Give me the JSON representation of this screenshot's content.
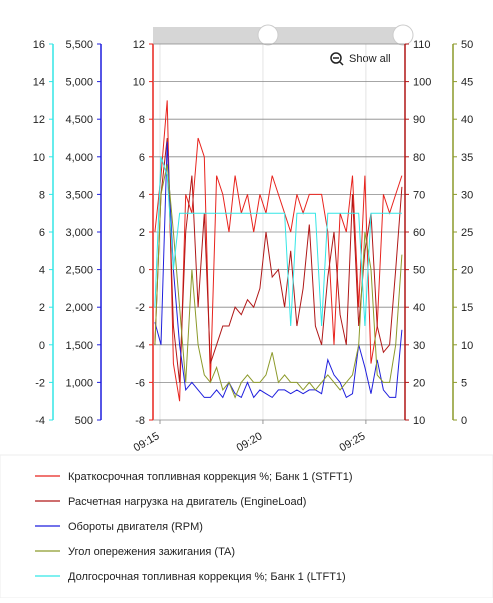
{
  "chart_data": {
    "type": "line",
    "button": "Show all",
    "x": [
      554.75,
      555.05,
      555.35,
      555.65,
      555.95,
      556.25,
      556.55,
      556.85,
      557.15,
      557.45,
      557.75,
      558.05,
      558.35,
      558.65,
      558.95,
      559.25,
      559.55,
      559.85,
      560.15,
      560.45,
      560.75,
      561.05,
      561.35,
      561.65,
      561.95,
      562.25,
      562.55,
      562.85,
      563.15,
      563.45,
      563.75,
      564.05,
      564.35,
      564.65,
      564.95,
      565.25,
      565.55,
      565.85,
      566.15,
      566.45,
      566.75
    ],
    "xlim": [
      554.66,
      566.9
    ],
    "xticks": [
      {
        "value": 555,
        "label": "09:15"
      },
      {
        "value": 560,
        "label": "09:20"
      },
      {
        "value": 565,
        "label": "09:25"
      }
    ],
    "grid": true,
    "series": [
      {
        "name": "Краткосрочная топливная коррекция %; Банк 1 (STFT1)",
        "color": "#e8231d",
        "ylim": [
          -8,
          12
        ],
        "yticks": [
          -8,
          -6,
          -4,
          -2,
          0,
          2,
          4,
          6,
          8,
          10,
          12
        ],
        "values": [
          2,
          5,
          9,
          -5,
          -7,
          4,
          3,
          7,
          6,
          -6,
          5,
          4,
          2,
          5,
          3,
          4,
          2,
          4,
          3,
          5,
          4,
          3,
          2,
          4,
          3,
          4,
          4,
          4,
          2,
          -4,
          3,
          2,
          5,
          -2,
          5,
          -5,
          -3,
          4,
          3,
          4,
          5
        ]
      },
      {
        "name": "Расчетная нагрузка на двигатель (EngineLoad)",
        "color": "#b01717",
        "ylim": [
          10,
          110
        ],
        "yticks": [
          10,
          20,
          30,
          40,
          50,
          60,
          70,
          80,
          90,
          100,
          110
        ],
        "values": [
          30,
          70,
          85,
          35,
          20,
          60,
          75,
          40,
          65,
          25,
          30,
          35,
          35,
          40,
          38,
          42,
          40,
          45,
          60,
          48,
          50,
          40,
          55,
          35,
          45,
          62,
          35,
          30,
          48,
          60,
          38,
          30,
          70,
          35,
          55,
          65,
          35,
          28,
          30,
          50,
          72
        ]
      },
      {
        "name": "Обороты двигателя (RPM)",
        "color": "#1f1fdd",
        "ylim": [
          500,
          5500
        ],
        "yticks": [
          500,
          {
            "value": 1000,
            "label": "1,000"
          },
          {
            "value": 1500,
            "label": "1,500"
          },
          {
            "value": 2000,
            "label": "2,000"
          },
          {
            "value": 2500,
            "label": "2,500"
          },
          {
            "value": 3000,
            "label": "3,000"
          },
          {
            "value": 3500,
            "label": "3,500"
          },
          {
            "value": 4000,
            "label": "4,000"
          },
          {
            "value": 4500,
            "label": "4,500"
          },
          {
            "value": 5000,
            "label": "5,000"
          },
          {
            "value": 5500,
            "label": "5,500"
          }
        ],
        "values": [
          1800,
          1500,
          4200,
          2500,
          1500,
          900,
          1000,
          900,
          800,
          800,
          900,
          800,
          1000,
          850,
          800,
          1000,
          800,
          900,
          850,
          800,
          900,
          900,
          850,
          900,
          850,
          900,
          900,
          850,
          1300,
          1100,
          1000,
          800,
          850,
          1500,
          1200,
          850,
          1300,
          900,
          800,
          800,
          1700
        ]
      },
      {
        "name": "Угол опережения зажигания (TA)",
        "color": "#8c9a2a",
        "ylim": [
          0,
          50
        ],
        "yticks": [
          0,
          5,
          10,
          15,
          20,
          25,
          30,
          35,
          40,
          45,
          50
        ],
        "values": [
          10,
          30,
          34,
          25,
          15,
          5,
          20,
          10,
          6,
          5,
          7,
          4,
          5,
          3,
          5,
          6,
          5,
          5,
          6,
          9,
          5,
          6,
          5,
          5,
          4,
          5,
          4,
          5,
          6,
          5,
          4,
          5,
          6,
          10,
          25,
          20,
          6,
          5,
          5,
          10,
          22
        ]
      },
      {
        "name": "Долгосрочная топливная коррекция %; Банк 1 (LTFT1)",
        "color": "#33e6e6",
        "ylim": [
          -4,
          16
        ],
        "yticks": [
          -4,
          -2,
          0,
          2,
          4,
          6,
          8,
          10,
          12,
          14,
          16
        ],
        "values": [
          2,
          10,
          9,
          4,
          7,
          7,
          7,
          7,
          7,
          7,
          7,
          7,
          7,
          7,
          7,
          7,
          7,
          7,
          7,
          7,
          7,
          7,
          1,
          7,
          7,
          7,
          7,
          1,
          7,
          7,
          7,
          7,
          7,
          7,
          1,
          7,
          7,
          7,
          7,
          7,
          7
        ]
      }
    ]
  }
}
